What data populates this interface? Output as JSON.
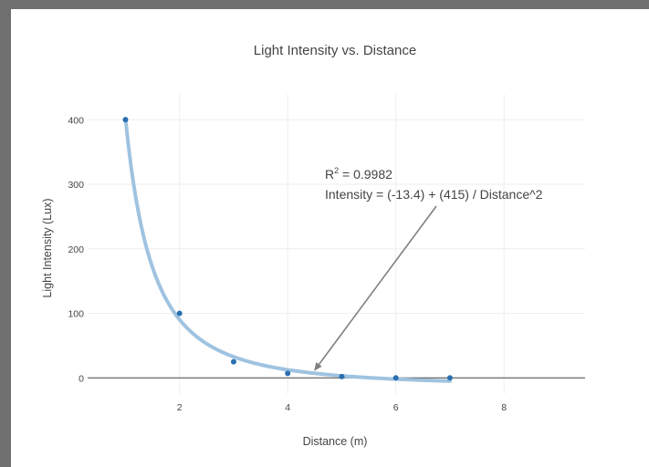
{
  "chart_data": {
    "type": "scatter",
    "title": "Light Intensity vs. Distance",
    "xlabel": "Distance (m)",
    "ylabel": "Light Intensity (Lux)",
    "xlim": [
      0.3,
      9.5
    ],
    "ylim": [
      -25,
      440
    ],
    "xticks": [
      2,
      4,
      6,
      8
    ],
    "yticks": [
      0,
      100,
      200,
      300,
      400
    ],
    "grid": true,
    "legend": "none",
    "colors": {
      "points": "#2a6fb0",
      "fit": "#9fc3e0",
      "arrow": "#7f7f7f",
      "zeroline": "#444444"
    },
    "series": [
      {
        "mode": "markers",
        "x": [
          1,
          2,
          3,
          4,
          5,
          6,
          7
        ],
        "y": [
          400,
          100,
          25,
          7,
          2,
          0,
          0
        ]
      }
    ],
    "fit": {
      "intercept": -13.4,
      "coefficient": 415,
      "x_range": [
        1,
        7
      ]
    },
    "annotation": {
      "r2_base": "R",
      "r2_sup": "2",
      "r2_rest": " = 0.9982",
      "equation": "Intensity = (-13.4) + (415) / Distance^2",
      "arrow_to": [
        4.5,
        12
      ]
    }
  }
}
